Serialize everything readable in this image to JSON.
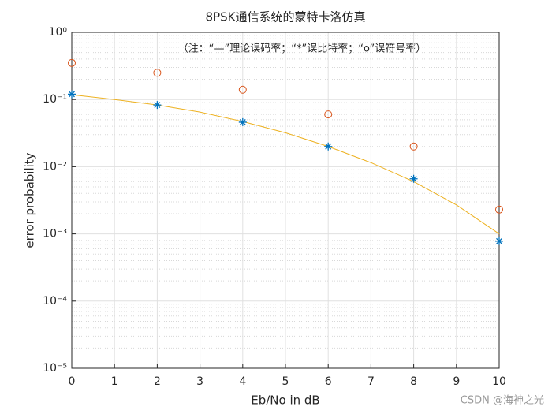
{
  "chart_data": {
    "type": "line",
    "title": "8PSK通信系统的蒙特卡洛仿真",
    "annotation": "（注：“—”理论误码率；“*”误比特率；“o”误符号率）",
    "x_label": "Eb/No in dB",
    "y_label": "error probability",
    "watermark": "CSDN @海神之光",
    "log_y": true,
    "grid": true,
    "minor_grid": true,
    "xlim": [
      0,
      10
    ],
    "xticks": [
      0,
      1,
      2,
      3,
      4,
      5,
      6,
      7,
      8,
      9,
      10
    ],
    "ylim": [
      1e-05,
      1
    ],
    "yticks": [
      {
        "value": 1e-05,
        "label": "10⁻⁵"
      },
      {
        "value": 0.0001,
        "label": "10⁻⁴"
      },
      {
        "value": 0.001,
        "label": "10⁻³"
      },
      {
        "value": 0.01,
        "label": "10⁻²"
      },
      {
        "value": 0.1,
        "label": "10⁻¹"
      },
      {
        "value": 1,
        "label": "10⁰"
      }
    ],
    "series": [
      {
        "marker": "line",
        "color": "#EDB120",
        "x": [
          0,
          1,
          2,
          3,
          4,
          5,
          6,
          7,
          8,
          9,
          10
        ],
        "values": [
          0.118,
          0.1,
          0.083,
          0.065,
          0.047,
          0.032,
          0.02,
          0.0115,
          0.006,
          0.0027,
          0.001
        ]
      },
      {
        "marker": "star",
        "color": "#0072BD",
        "x": [
          0,
          2,
          4,
          6,
          8,
          10
        ],
        "values": [
          0.12,
          0.083,
          0.046,
          0.02,
          0.0066,
          0.00078
        ]
      },
      {
        "marker": "circle",
        "color": "#D95319",
        "x": [
          0,
          2,
          4,
          6,
          8,
          10
        ],
        "values": [
          0.35,
          0.25,
          0.14,
          0.06,
          0.02,
          0.0023
        ]
      }
    ]
  }
}
